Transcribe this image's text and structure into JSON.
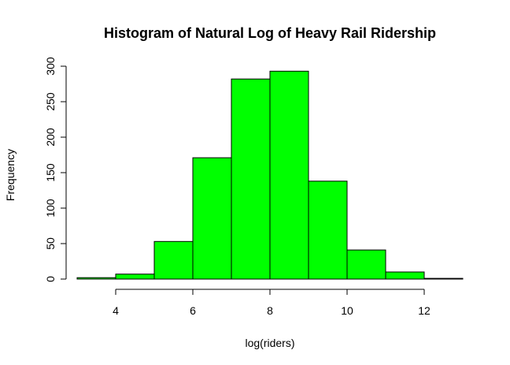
{
  "chart_data": {
    "type": "bar",
    "title": "Histogram of Natural Log of Heavy Rail Ridership",
    "xlabel": "log(riders)",
    "ylabel": "Frequency",
    "bins": [
      {
        "start": 3,
        "end": 4,
        "count": 2
      },
      {
        "start": 4,
        "end": 5,
        "count": 7
      },
      {
        "start": 5,
        "end": 6,
        "count": 53
      },
      {
        "start": 6,
        "end": 7,
        "count": 171
      },
      {
        "start": 7,
        "end": 8,
        "count": 282
      },
      {
        "start": 8,
        "end": 9,
        "count": 293
      },
      {
        "start": 9,
        "end": 10,
        "count": 138
      },
      {
        "start": 10,
        "end": 11,
        "count": 41
      },
      {
        "start": 11,
        "end": 12,
        "count": 10
      },
      {
        "start": 12,
        "end": 13,
        "count": 1
      }
    ],
    "xlim": [
      3,
      13
    ],
    "ylim": [
      0,
      300
    ],
    "x_ticks": [
      "4",
      "6",
      "8",
      "10",
      "12"
    ],
    "y_ticks": [
      "0",
      "50",
      "100",
      "150",
      "200",
      "250",
      "300"
    ],
    "bar_color": "#00ff00",
    "bar_border_color": "#000000",
    "grid": false,
    "legend": "none"
  }
}
